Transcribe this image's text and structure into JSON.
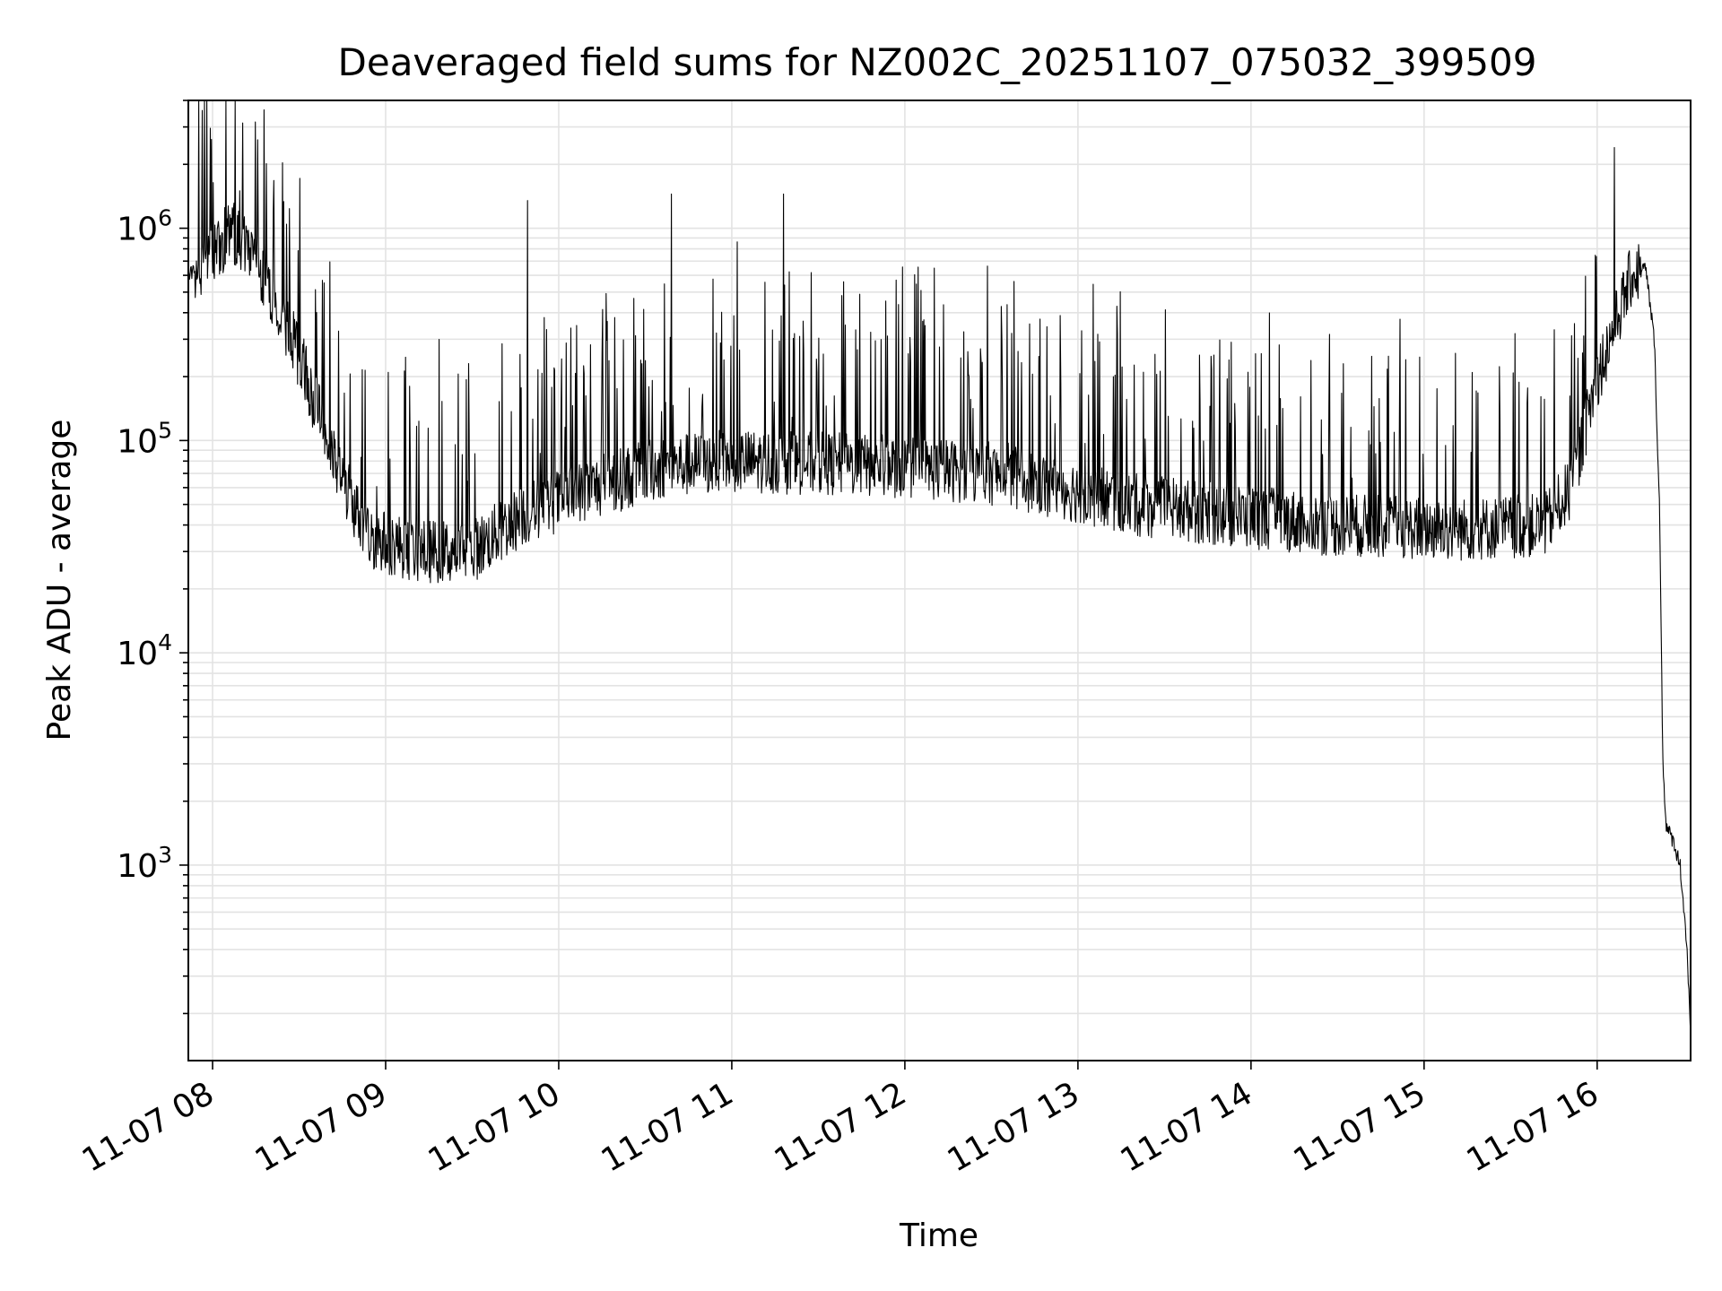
{
  "chart_data": {
    "type": "line",
    "title": "Deaveraged field sums for NZ002C_20251107_075032_399509",
    "xlabel": "Time",
    "ylabel": "Peak ADU - average",
    "yscale": "log",
    "ylim": [
      120,
      4000000
    ],
    "xlim_hours": [
      7.86,
      16.54
    ],
    "grid": true,
    "line_color": "#000000",
    "grid_color": "#e3e3e3",
    "x_ticks": [
      {
        "hour": 8,
        "label": "11-07 08"
      },
      {
        "hour": 9,
        "label": "11-07 09"
      },
      {
        "hour": 10,
        "label": "11-07 10"
      },
      {
        "hour": 11,
        "label": "11-07 11"
      },
      {
        "hour": 12,
        "label": "11-07 12"
      },
      {
        "hour": 13,
        "label": "11-07 13"
      },
      {
        "hour": 14,
        "label": "11-07 14"
      },
      {
        "hour": 15,
        "label": "11-07 15"
      },
      {
        "hour": 16,
        "label": "11-07 16"
      }
    ],
    "y_ticks": [
      {
        "value": 1000,
        "base": "10",
        "exp": "3"
      },
      {
        "value": 10000,
        "base": "10",
        "exp": "4"
      },
      {
        "value": 100000,
        "base": "10",
        "exp": "5"
      },
      {
        "value": 1000000,
        "base": "10",
        "exp": "6"
      }
    ],
    "baseline_hours": [
      7.86,
      8.0,
      8.1,
      8.3,
      8.5,
      8.7,
      8.9,
      9.2,
      9.5,
      9.8,
      10.2,
      10.6,
      11.0,
      11.5,
      12.0,
      12.5,
      12.9,
      13.3,
      13.8,
      14.5,
      15.2,
      15.7,
      15.85,
      16.0,
      16.2,
      16.28,
      16.33,
      16.36,
      16.38,
      16.4,
      16.44,
      16.48,
      16.52,
      16.54
    ],
    "baseline_values": [
      600000,
      700000,
      1000000,
      600000,
      250000,
      80000,
      35000,
      30000,
      30000,
      45000,
      60000,
      75000,
      80000,
      78000,
      75000,
      70000,
      60000,
      50000,
      45000,
      40000,
      38000,
      40000,
      60000,
      200000,
      600000,
      650000,
      300000,
      50000,
      3000,
      1500,
      1300,
      1000,
      400,
      150
    ],
    "noise_log_amplitude": 0.15,
    "spike_log_max": 0.6,
    "spike_prob": 0.12,
    "notable_peaks": [
      {
        "hour": 8.07,
        "value": 1250000
      },
      {
        "hour": 8.35,
        "value": 1200000
      },
      {
        "hour": 9.82,
        "value": 1350000
      },
      {
        "hour": 10.65,
        "value": 1450000
      },
      {
        "hour": 11.3,
        "value": 1450000
      },
      {
        "hour": 16.1,
        "value": 2400000
      }
    ]
  }
}
